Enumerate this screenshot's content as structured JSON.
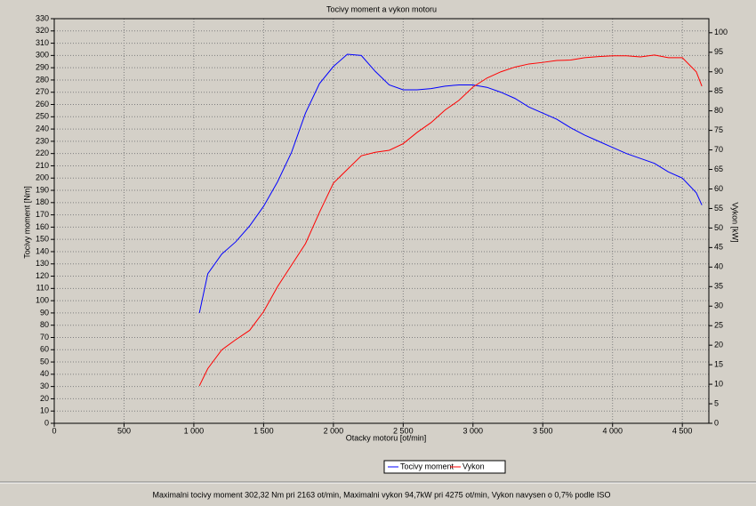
{
  "chart_data": {
    "type": "line",
    "title": "Tocivy moment a vykon motoru",
    "x_label": "Otacky motoru [ot/min]",
    "y_label": "Tocivy moment [Nm]",
    "y2_label": "Vykon [kW]",
    "x": [
      1040,
      1100,
      1200,
      1300,
      1400,
      1500,
      1600,
      1700,
      1800,
      1900,
      2000,
      2100,
      2200,
      2300,
      2400,
      2500,
      2600,
      2700,
      2800,
      2900,
      3000,
      3100,
      3200,
      3300,
      3400,
      3500,
      3600,
      3700,
      3800,
      3900,
      4000,
      4100,
      4200,
      4300,
      4400,
      4500,
      4600,
      4640
    ],
    "series": [
      {
        "name": "Tocivy moment",
        "color": "#0000ff",
        "values": [
          90,
          122,
          138,
          148,
          161,
          177,
          197,
          221,
          253,
          277,
          291,
          301,
          300,
          287,
          276,
          272,
          272,
          273,
          275,
          276,
          276,
          274,
          270,
          265,
          258,
          253,
          248,
          241,
          235,
          230,
          225,
          220,
          216,
          212,
          205,
          200,
          188,
          178
        ]
      },
      {
        "name": "Vykon",
        "color": "#ff0000",
        "axis": "y2",
        "values": [
          9.6,
          14,
          18.8,
          21.4,
          23.8,
          28.6,
          35,
          40.5,
          46,
          54,
          61.5,
          65,
          68.5,
          69.4,
          69.9,
          71.6,
          74.5,
          77,
          80.2,
          82.7,
          86.1,
          88.4,
          90,
          91.2,
          92,
          92.4,
          92.9,
          93,
          93.6,
          93.9,
          94.1,
          94.1,
          93.8,
          94.3,
          93.6,
          93.6,
          90,
          86.3
        ]
      }
    ],
    "xlim": [
      0,
      4690
    ],
    "xticks": [
      0,
      500,
      {
        "value": 1000,
        "label": "1 000"
      },
      {
        "value": 1500,
        "label": "1 500"
      },
      {
        "value": 2000,
        "label": "2 000"
      },
      {
        "value": 2500,
        "label": "2 500"
      },
      {
        "value": 3000,
        "label": "3 000"
      },
      {
        "value": 3500,
        "label": "3 500"
      },
      {
        "value": 4000,
        "label": "4 000"
      },
      {
        "value": 4500,
        "label": "4 500"
      }
    ],
    "ylim": [
      0,
      330
    ],
    "yticks": [
      0,
      10,
      20,
      30,
      40,
      50,
      60,
      70,
      80,
      90,
      100,
      110,
      120,
      130,
      140,
      150,
      160,
      170,
      180,
      190,
      200,
      210,
      220,
      230,
      240,
      250,
      260,
      270,
      280,
      290,
      300,
      310,
      320,
      330
    ],
    "y2lim": [
      0,
      103.6
    ],
    "y2ticks": [
      0,
      5,
      10,
      15,
      20,
      25,
      30,
      35,
      40,
      45,
      50,
      55,
      60,
      65,
      70,
      75,
      80,
      85,
      90,
      95,
      100
    ],
    "grid": true,
    "legend": "bottom",
    "footer": "Maximalni tocivy moment 302,32 Nm pri 2163 ot/min,  Maximalni vykon 94,7kW pri 4275 ot/min,  Vykon navysen o 0,7% podle ISO"
  }
}
